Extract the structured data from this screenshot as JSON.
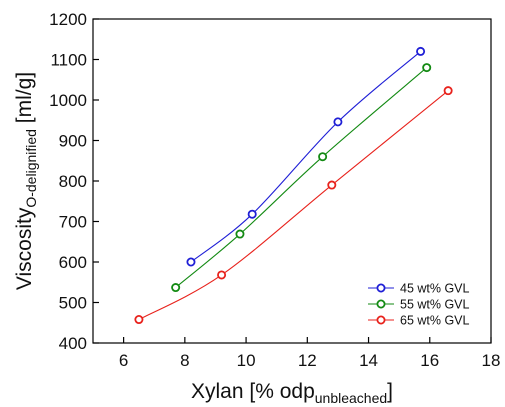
{
  "chart_data": {
    "type": "line",
    "xlabel": {
      "main": "Xylan [% odp",
      "sub": "unbleached",
      "close": "]"
    },
    "ylabel": {
      "main": "Viscosity",
      "sub": "O-delignified",
      "rest": " [ml/g]"
    },
    "xlim": [
      5,
      18
    ],
    "ylim": [
      400,
      1200
    ],
    "x_ticks": [
      6,
      8,
      10,
      12,
      14,
      16,
      18
    ],
    "y_ticks": [
      400,
      500,
      600,
      700,
      800,
      900,
      1000,
      1100,
      1200
    ],
    "grid": false,
    "legend_position": "bottom-right",
    "series": [
      {
        "name": "45 wt% GVL",
        "color": "#1f1fd6",
        "x": [
          8.2,
          10.2,
          13.0,
          15.7
        ],
        "y": [
          600,
          718,
          946,
          1120
        ]
      },
      {
        "name": "55 wt% GVL",
        "color": "#138a13",
        "x": [
          7.7,
          9.8,
          12.5,
          15.9
        ],
        "y": [
          537,
          669,
          860,
          1080
        ]
      },
      {
        "name": "65 wt% GVL",
        "color": "#e8221c",
        "x": [
          6.5,
          9.2,
          12.8,
          16.6
        ],
        "y": [
          458,
          568,
          790,
          1023
        ]
      }
    ]
  }
}
